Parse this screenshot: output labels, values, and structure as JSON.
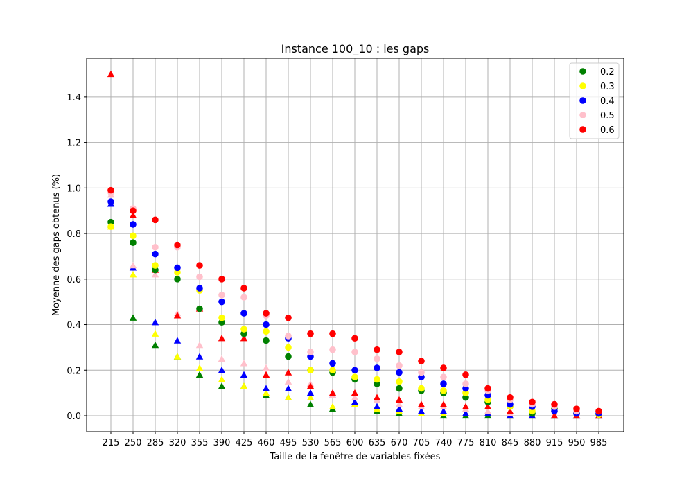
{
  "chart_data": {
    "type": "scatter",
    "title": "Instance 100_10 : les gaps",
    "xlabel": "Taille de la fenêtre de variables fixées",
    "ylabel": "Moyenne des gaps obtenus (%)",
    "ylim": [
      -0.07,
      1.57
    ],
    "yticks": [
      0.0,
      0.2,
      0.4,
      0.6,
      0.8,
      1.0,
      1.2,
      1.4
    ],
    "ytick_labels": [
      "0.0",
      "0.2",
      "0.4",
      "0.6",
      "0.8",
      "1.0",
      "1.2",
      "1.4"
    ],
    "categories": [
      "215",
      "250",
      "285",
      "320",
      "355",
      "390",
      "425",
      "460",
      "495",
      "530",
      "565",
      "600",
      "635",
      "670",
      "705",
      "740",
      "775",
      "810",
      "845",
      "880",
      "915",
      "950",
      "985"
    ],
    "grid": true,
    "legend_position": "top-right",
    "series": [
      {
        "name": "0.2",
        "color": "#008000",
        "circles": [
          0.85,
          0.76,
          0.64,
          0.6,
          0.47,
          0.41,
          0.36,
          0.33,
          0.26,
          0.2,
          0.19,
          0.16,
          0.14,
          0.12,
          0.11,
          0.1,
          0.08,
          0.06,
          0.04,
          0.01,
          0.03,
          0.01,
          0.005
        ],
        "triangles": [
          0.84,
          0.43,
          0.31,
          0.26,
          0.18,
          0.13,
          0.13,
          0.09,
          0.08,
          0.05,
          0.03,
          0.05,
          0.02,
          0.01,
          0.01,
          0.0,
          0.0,
          0.0,
          0.0,
          0.0,
          0.0,
          0.0,
          0.0
        ]
      },
      {
        "name": "0.3",
        "color": "#ffff00",
        "circles": [
          0.83,
          0.79,
          0.66,
          0.63,
          0.55,
          0.43,
          0.38,
          0.37,
          0.3,
          0.2,
          0.2,
          0.17,
          0.16,
          0.15,
          0.12,
          0.11,
          0.1,
          0.07,
          0.04,
          0.02,
          0.02,
          0.01,
          0.005
        ],
        "triangles": [
          0.83,
          0.62,
          0.36,
          0.26,
          0.21,
          0.16,
          0.13,
          0.1,
          0.08,
          0.08,
          0.04,
          0.05,
          0.03,
          0.02,
          0.01,
          0.01,
          0.01,
          0.01,
          0.0,
          0.0,
          0.0,
          0.0,
          0.0
        ]
      },
      {
        "name": "0.4",
        "color": "#0000ff",
        "circles": [
          0.94,
          0.84,
          0.71,
          0.65,
          0.56,
          0.5,
          0.45,
          0.4,
          0.34,
          0.26,
          0.23,
          0.2,
          0.21,
          0.19,
          0.17,
          0.14,
          0.12,
          0.09,
          0.05,
          0.04,
          0.02,
          0.01,
          0.01
        ],
        "triangles": [
          0.93,
          0.65,
          0.41,
          0.33,
          0.26,
          0.2,
          0.18,
          0.12,
          0.12,
          0.1,
          0.09,
          0.06,
          0.04,
          0.03,
          0.02,
          0.02,
          0.01,
          0.01,
          0.0,
          0.0,
          0.0,
          0.0,
          0.0
        ]
      },
      {
        "name": "0.5",
        "color": "#ffc0cb",
        "circles": [
          0.98,
          0.91,
          0.74,
          0.74,
          0.61,
          0.53,
          0.52,
          0.44,
          0.35,
          0.28,
          0.29,
          0.28,
          0.25,
          0.22,
          0.19,
          0.17,
          0.14,
          0.11,
          0.07,
          0.05,
          0.04,
          0.02,
          0.02
        ],
        "triangles": [
          0.97,
          0.66,
          0.62,
          0.45,
          0.31,
          0.25,
          0.23,
          0.21,
          0.15,
          0.14,
          0.09,
          0.08,
          0.07,
          0.05,
          0.04,
          0.04,
          0.03,
          0.02,
          0.01,
          0.01,
          0.01,
          0.0,
          0.0
        ]
      },
      {
        "name": "0.6",
        "color": "#ff0000",
        "circles": [
          0.99,
          0.9,
          0.86,
          0.75,
          0.66,
          0.6,
          0.56,
          0.45,
          0.43,
          0.36,
          0.36,
          0.34,
          0.29,
          0.28,
          0.24,
          0.21,
          0.18,
          0.12,
          0.08,
          0.06,
          0.05,
          0.03,
          0.02
        ],
        "triangles": [
          1.5,
          0.88,
          0.64,
          0.44,
          0.47,
          0.34,
          0.34,
          0.18,
          0.19,
          0.13,
          0.1,
          0.1,
          0.08,
          0.07,
          0.05,
          0.05,
          0.04,
          0.04,
          0.02,
          0.02,
          0.0,
          0.0,
          0.0
        ]
      }
    ]
  }
}
